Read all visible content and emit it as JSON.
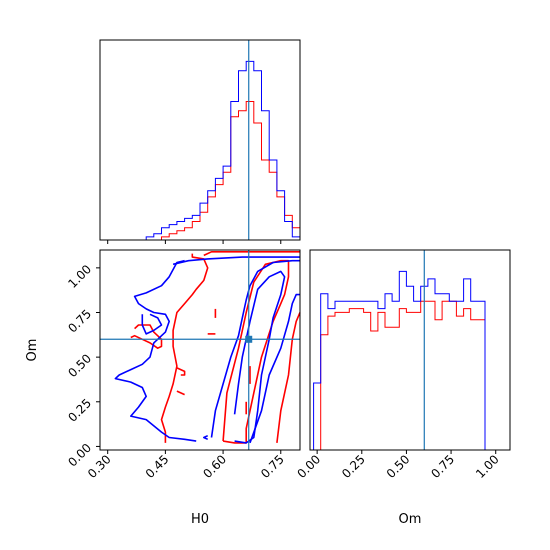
{
  "colors": {
    "series_a": "#ff0000",
    "series_b": "#0000ff",
    "truth": "#1f77b4",
    "axes": "#000000"
  },
  "chart_data": [
    {
      "panel": "hist-H0",
      "type": "step-histogram",
      "x_range": [
        0.28,
        0.8
      ],
      "truth": 0.6667,
      "bin_edges": [
        0.28,
        0.3,
        0.32,
        0.34,
        0.36,
        0.38,
        0.4,
        0.42,
        0.44,
        0.46,
        0.48,
        0.5,
        0.52,
        0.54,
        0.56,
        0.58,
        0.6,
        0.62,
        0.64,
        0.66,
        0.68,
        0.7,
        0.72,
        0.74,
        0.76,
        0.78,
        0.8
      ],
      "series": [
        {
          "color_key": "series_a",
          "values": [
            0,
            0,
            0,
            0,
            0,
            0,
            0,
            0,
            1,
            2,
            3,
            4,
            6,
            9,
            14,
            18,
            22,
            40,
            42,
            45,
            38,
            26,
            22,
            14,
            8,
            4
          ]
        },
        {
          "color_key": "series_b",
          "values": [
            0,
            0,
            0,
            0,
            0,
            0,
            1,
            2,
            4,
            5,
            6,
            7,
            8,
            12,
            16,
            20,
            24,
            45,
            55,
            58,
            55,
            42,
            26,
            16,
            6,
            1
          ]
        }
      ]
    },
    {
      "panel": "contour-H0-Om",
      "type": "contour",
      "x_range": [
        0.28,
        0.8
      ],
      "y_range": [
        -0.02,
        1.1
      ],
      "x_ticks": [
        "0.30",
        "0.45",
        "0.60",
        "0.75"
      ],
      "y_ticks": [
        "0.00",
        "0.25",
        "0.50",
        "0.75",
        "1.00"
      ],
      "xlabel": "H0",
      "ylabel": "Om",
      "truth": [
        0.6667,
        0.6
      ],
      "series": [
        {
          "color_key": "series_a",
          "contours": [
            [
              [
                0.55,
                1.07
              ],
              [
                0.57,
                1.09
              ],
              [
                0.65,
                1.09
              ],
              [
                0.8,
                1.09
              ]
            ],
            [
              [
                0.52,
                1.08
              ],
              [
                0.52,
                1.06
              ],
              [
                0.55,
                1.05
              ],
              [
                0.56,
                1.0
              ],
              [
                0.55,
                0.93
              ],
              [
                0.53,
                0.88
              ],
              [
                0.52,
                0.85
              ],
              [
                0.5,
                0.8
              ],
              [
                0.48,
                0.75
              ],
              [
                0.47,
                0.65
              ],
              [
                0.47,
                0.56
              ],
              [
                0.48,
                0.45
              ],
              [
                0.47,
                0.35
              ],
              [
                0.46,
                0.28
              ],
              [
                0.45,
                0.22
              ],
              [
                0.44,
                0.15
              ],
              [
                0.45,
                0.08
              ],
              [
                0.45,
                0.02
              ]
            ],
            [
              [
                0.37,
                0.66
              ],
              [
                0.38,
                0.68
              ],
              [
                0.41,
                0.68
              ],
              [
                0.42,
                0.64
              ],
              [
                0.44,
                0.6
              ],
              [
                0.44,
                0.56
              ],
              [
                0.43,
                0.55
              ],
              [
                0.41,
                0.58
              ],
              [
                0.39,
                0.6
              ],
              [
                0.37,
                0.62
              ],
              [
                0.36,
                0.61
              ]
            ],
            [
              [
                0.58,
                0.77
              ],
              [
                0.58,
                0.72
              ]
            ],
            [
              [
                0.56,
                0.63
              ],
              [
                0.58,
                0.63
              ]
            ],
            [
              [
                0.48,
                0.44
              ],
              [
                0.5,
                0.42
              ],
              [
                0.5,
                0.4
              ],
              [
                0.49,
                0.4
              ]
            ],
            [
              [
                0.48,
                0.31
              ],
              [
                0.5,
                0.29
              ]
            ],
            [
              [
                0.6,
                0.03
              ],
              [
                0.61,
                0.3
              ],
              [
                0.64,
                0.55
              ],
              [
                0.66,
                0.75
              ],
              [
                0.68,
                0.92
              ],
              [
                0.71,
                1.02
              ],
              [
                0.75,
                1.04
              ],
              [
                0.77,
                1.04
              ],
              [
                0.77,
                0.95
              ],
              [
                0.76,
                0.85
              ],
              [
                0.75,
                0.8
              ],
              [
                0.73,
                0.7
              ],
              [
                0.7,
                0.5
              ],
              [
                0.68,
                0.3
              ],
              [
                0.66,
                0.1
              ],
              [
                0.66,
                0.02
              ],
              [
                0.63,
                0.02
              ],
              [
                0.6,
                0.03
              ]
            ],
            [
              [
                0.74,
                0.02
              ],
              [
                0.75,
                0.2
              ],
              [
                0.77,
                0.4
              ],
              [
                0.78,
                0.6
              ],
              [
                0.79,
                0.7
              ],
              [
                0.8,
                0.75
              ]
            ],
            [
              [
                0.67,
                0.45
              ],
              [
                0.67,
                0.35
              ]
            ],
            [
              [
                0.66,
                0.25
              ],
              [
                0.66,
                0.18
              ]
            ]
          ]
        },
        {
          "color_key": "series_b",
          "contours": [
            [
              [
                0.47,
                1.02
              ],
              [
                0.51,
                1.04
              ],
              [
                0.56,
                1.05
              ],
              [
                0.65,
                1.06
              ],
              [
                0.8,
                1.06
              ]
            ],
            [
              [
                0.5,
                1.04
              ],
              [
                0.48,
                1.03
              ],
              [
                0.46,
                0.95
              ],
              [
                0.44,
                0.9
              ],
              [
                0.4,
                0.86
              ],
              [
                0.37,
                0.84
              ],
              [
                0.38,
                0.8
              ],
              [
                0.4,
                0.77
              ],
              [
                0.42,
                0.75
              ],
              [
                0.45,
                0.74
              ],
              [
                0.46,
                0.7
              ],
              [
                0.45,
                0.64
              ],
              [
                0.42,
                0.58
              ],
              [
                0.41,
                0.5
              ],
              [
                0.39,
                0.46
              ],
              [
                0.36,
                0.43
              ],
              [
                0.33,
                0.4
              ],
              [
                0.32,
                0.38
              ],
              [
                0.36,
                0.36
              ],
              [
                0.39,
                0.33
              ],
              [
                0.4,
                0.28
              ],
              [
                0.38,
                0.22
              ],
              [
                0.36,
                0.17
              ],
              [
                0.4,
                0.15
              ],
              [
                0.44,
                0.08
              ],
              [
                0.46,
                0.05
              ],
              [
                0.5,
                0.04
              ],
              [
                0.53,
                0.03
              ]
            ],
            [
              [
                0.39,
                0.74
              ],
              [
                0.39,
                0.68
              ],
              [
                0.4,
                0.63
              ],
              [
                0.42,
                0.65
              ],
              [
                0.44,
                0.68
              ],
              [
                0.43,
                0.72
              ],
              [
                0.41,
                0.74
              ]
            ],
            [
              [
                0.63,
                0.18
              ],
              [
                0.64,
                0.35
              ],
              [
                0.65,
                0.5
              ],
              [
                0.67,
                0.7
              ],
              [
                0.69,
                0.88
              ],
              [
                0.72,
                0.95
              ],
              [
                0.75,
                0.98
              ],
              [
                0.76,
                0.95
              ],
              [
                0.75,
                0.85
              ],
              [
                0.73,
                0.72
              ],
              [
                0.72,
                0.6
              ],
              [
                0.7,
                0.4
              ],
              [
                0.69,
                0.2
              ],
              [
                0.68,
                0.05
              ],
              [
                0.66,
                0.02
              ],
              [
                0.63,
                0.03
              ]
            ],
            [
              [
                0.57,
                0.05
              ],
              [
                0.58,
                0.2
              ],
              [
                0.6,
                0.35
              ],
              [
                0.62,
                0.5
              ],
              [
                0.64,
                0.62
              ],
              [
                0.65,
                0.72
              ],
              [
                0.66,
                0.82
              ],
              [
                0.67,
                0.9
              ],
              [
                0.69,
                0.98
              ],
              [
                0.73,
                1.03
              ],
              [
                0.78,
                1.04
              ],
              [
                0.8,
                1.04
              ]
            ],
            [
              [
                0.67,
                0.02
              ],
              [
                0.7,
                0.2
              ],
              [
                0.72,
                0.4
              ],
              [
                0.75,
                0.55
              ],
              [
                0.77,
                0.7
              ],
              [
                0.78,
                0.8
              ],
              [
                0.79,
                0.85
              ],
              [
                0.8,
                0.85
              ]
            ],
            [
              [
                0.56,
                0.06
              ],
              [
                0.55,
                0.05
              ],
              [
                0.56,
                0.04
              ]
            ]
          ]
        }
      ]
    },
    {
      "panel": "hist-Om",
      "type": "step-histogram",
      "x_range": [
        -0.04,
        1.08
      ],
      "x_ticks": [
        "0.00",
        "0.25",
        "0.50",
        "0.75",
        "1.00"
      ],
      "xlabel": "Om",
      "truth": 0.6,
      "bin_edges": [
        -0.02,
        0.02,
        0.06,
        0.1,
        0.14,
        0.18,
        0.22,
        0.26,
        0.3,
        0.34,
        0.38,
        0.42,
        0.46,
        0.5,
        0.54,
        0.58,
        0.62,
        0.66,
        0.7,
        0.74,
        0.78,
        0.82,
        0.86,
        0.9,
        0.94,
        0.98,
        1.02
      ],
      "series": [
        {
          "color_key": "series_a",
          "values": [
            0,
            31,
            36,
            37,
            37,
            38,
            38,
            37,
            32,
            37,
            33,
            33,
            38,
            37,
            37,
            40,
            40,
            35,
            40,
            40,
            36,
            38,
            35,
            35,
            0,
            0
          ]
        },
        {
          "color_key": "series_b",
          "values": [
            18,
            42,
            38,
            40,
            40,
            40,
            40,
            40,
            40,
            38,
            42,
            40,
            48,
            44,
            40,
            44,
            46,
            42,
            42,
            40,
            40,
            46,
            40,
            40,
            0,
            0
          ]
        }
      ]
    }
  ]
}
